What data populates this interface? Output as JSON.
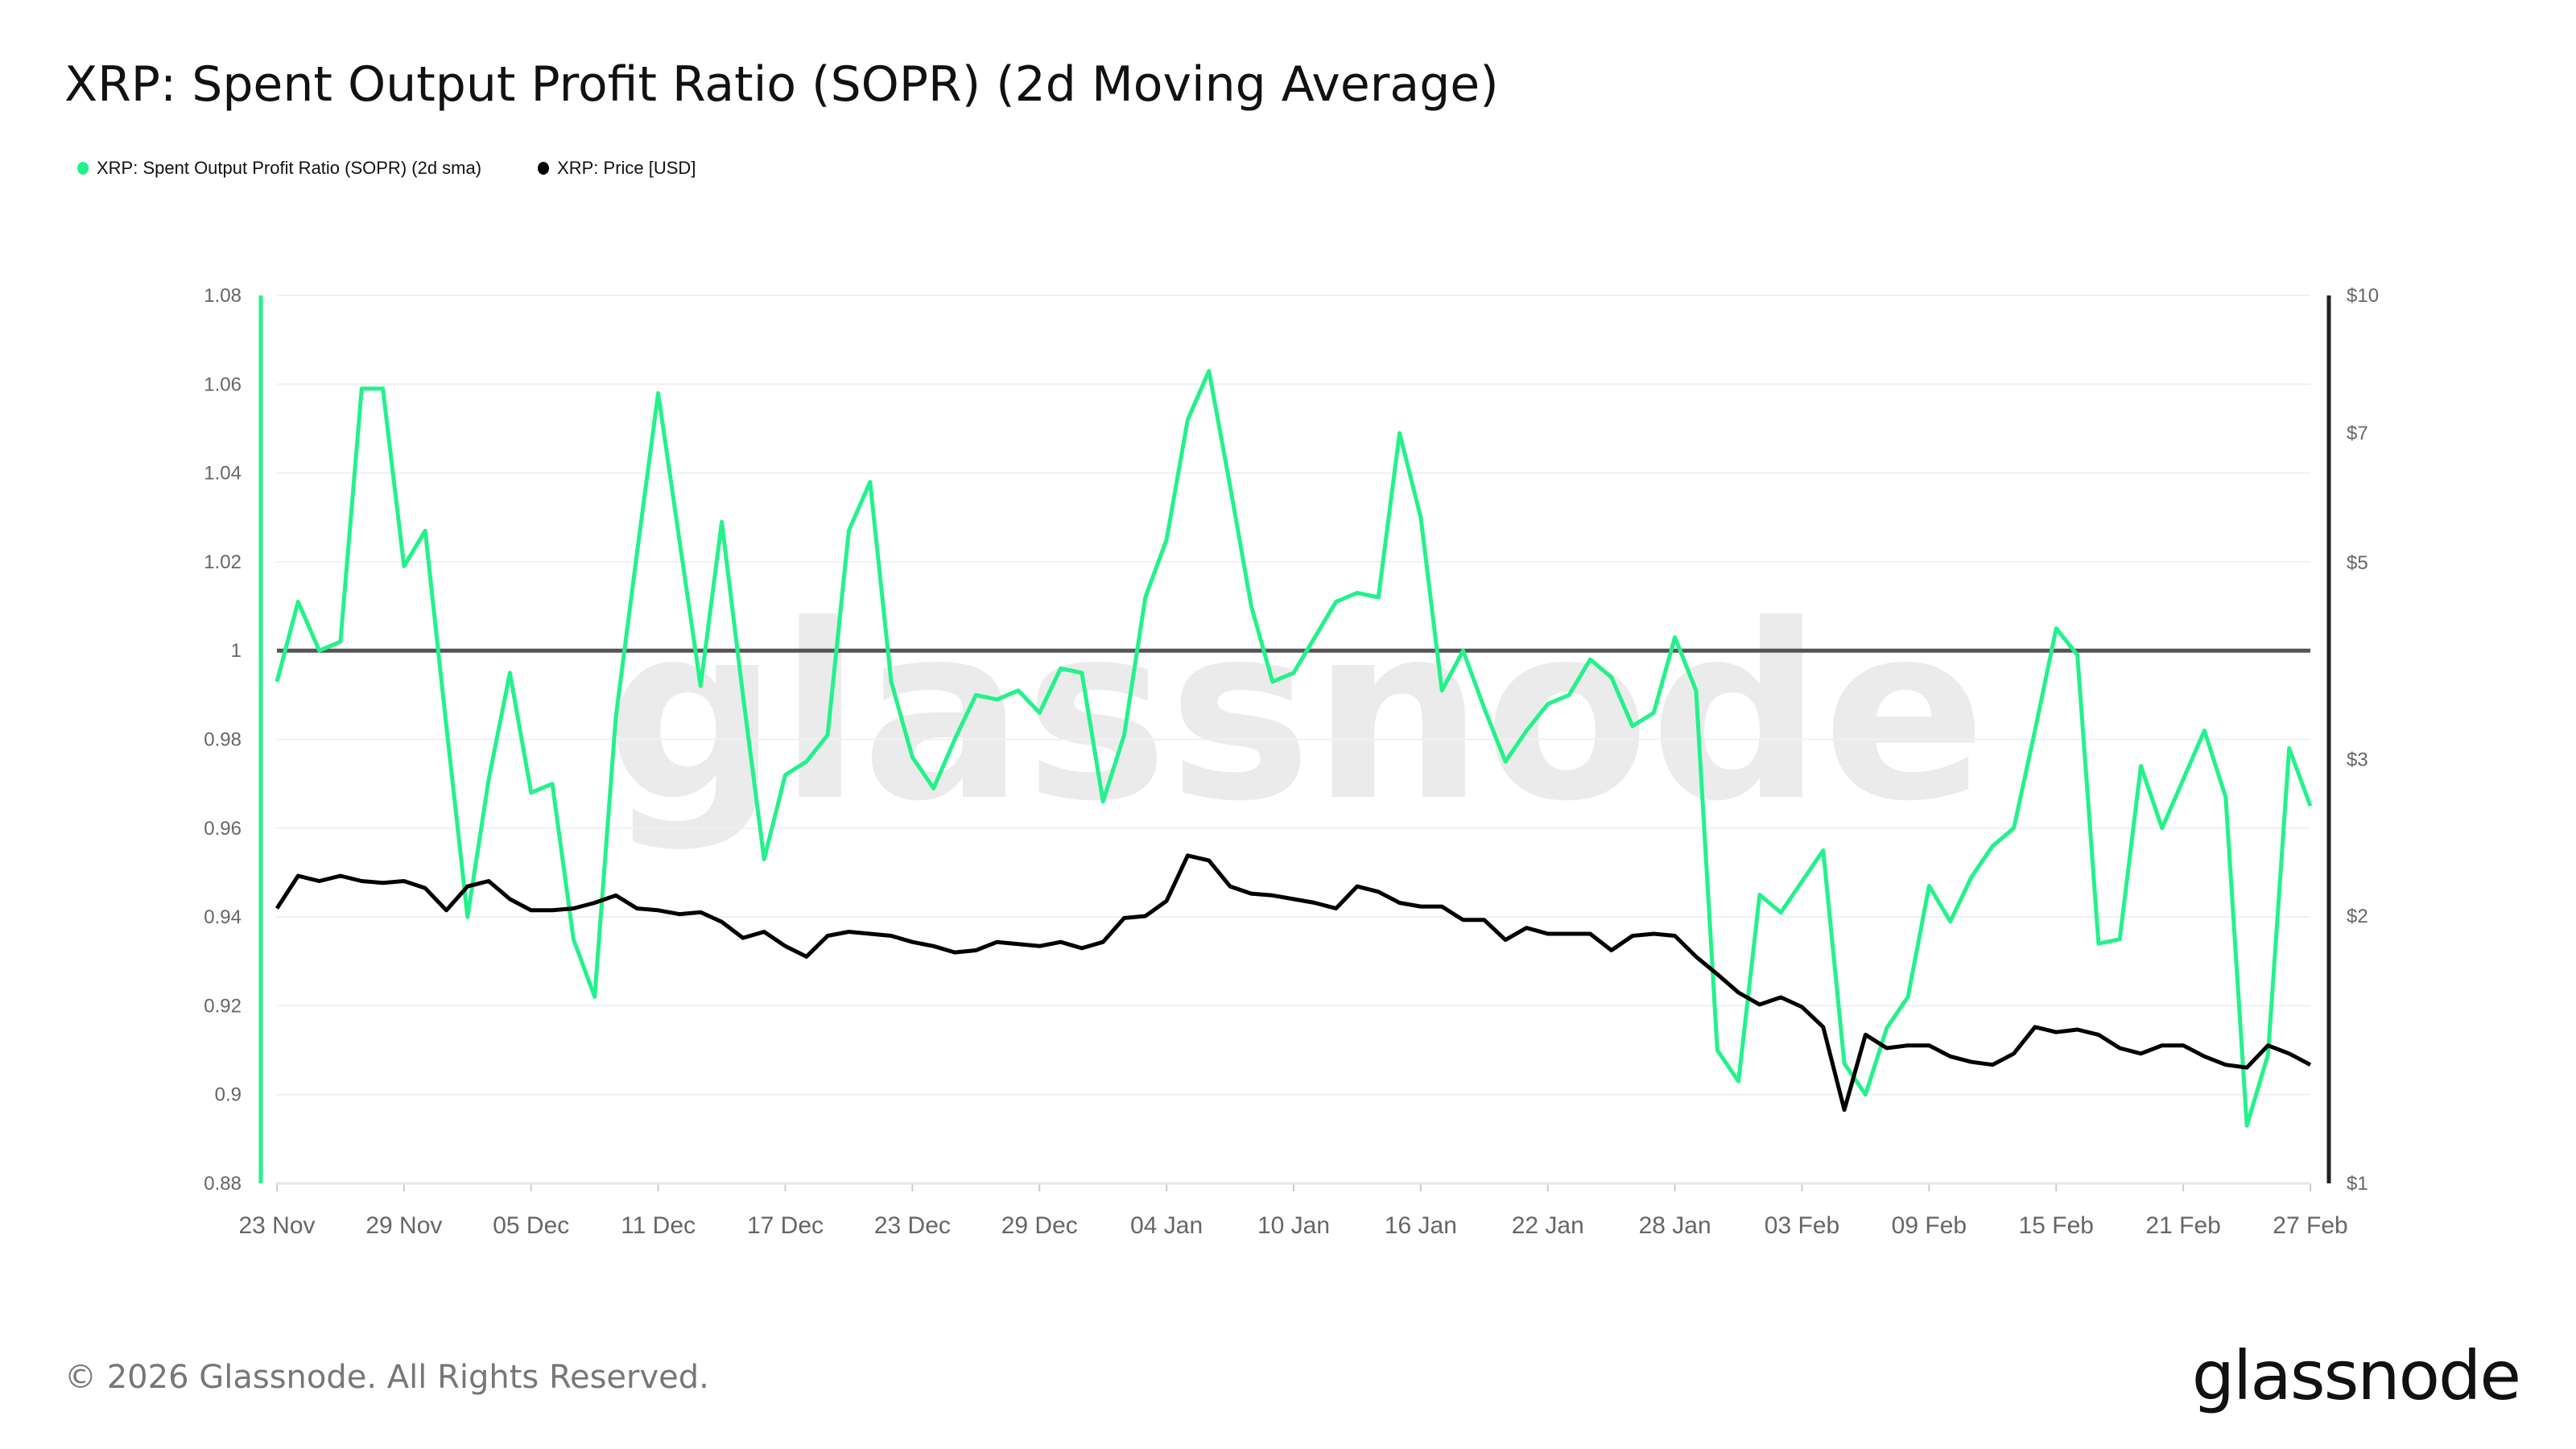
{
  "title": "XRP: Spent Output Profit Ratio (SOPR) (2d Moving Average)",
  "legend": [
    {
      "label": "XRP: Spent Output Profit Ratio (SOPR) (2d sma)",
      "color": "#22f28a"
    },
    {
      "label": "XRP: Price [USD]",
      "color": "#000000"
    }
  ],
  "watermark": "glassnode",
  "footer": {
    "copyright": "© 2026 Glassnode. All Rights Reserved.",
    "logo": "glassnode"
  },
  "chart_data": {
    "type": "line",
    "x_start": "23 Nov",
    "x_end": "27 Feb",
    "x_tick_labels": [
      "23 Nov",
      "29 Nov",
      "05 Dec",
      "11 Dec",
      "17 Dec",
      "23 Dec",
      "29 Dec",
      "04 Jan",
      "10 Jan",
      "16 Jan",
      "22 Jan",
      "28 Jan",
      "03 Feb",
      "09 Feb",
      "15 Feb",
      "21 Feb",
      "27 Feb"
    ],
    "y_left": {
      "range": [
        0.88,
        1.08
      ],
      "ticks": [
        "0.88",
        "0.9",
        "0.92",
        "0.94",
        "0.96",
        "0.98",
        "1",
        "1.02",
        "1.04",
        "1.06",
        "1.08"
      ],
      "scale": "linear"
    },
    "y_right": {
      "range": [
        1,
        10
      ],
      "ticks": [
        "$1",
        "$2",
        "$3",
        "$5",
        "$7",
        "$10"
      ],
      "tick_values": [
        1,
        2,
        3,
        5,
        7,
        10
      ],
      "scale": "log"
    },
    "reference_line": {
      "value": 1.0,
      "color": "#555555"
    },
    "grid": true,
    "legend_position": "top-left",
    "series": [
      {
        "name": "XRP: Spent Output Profit Ratio (SOPR) (2d sma)",
        "axis": "left",
        "color": "#22f28a",
        "values": [
          0.993,
          1.011,
          1.0,
          1.002,
          1.059,
          1.059,
          1.019,
          1.027,
          0.983,
          0.94,
          0.971,
          0.995,
          0.968,
          0.97,
          0.935,
          0.922,
          0.985,
          1.022,
          1.058,
          1.025,
          0.992,
          1.029,
          0.99,
          0.953,
          0.972,
          0.975,
          0.981,
          1.027,
          1.038,
          0.993,
          0.976,
          0.969,
          0.98,
          0.99,
          0.989,
          0.991,
          0.986,
          0.996,
          0.995,
          0.966,
          0.981,
          1.012,
          1.025,
          1.052,
          1.063,
          1.037,
          1.01,
          0.993,
          0.995,
          1.003,
          1.011,
          1.013,
          1.012,
          1.049,
          1.03,
          0.991,
          1.0,
          0.987,
          0.975,
          0.982,
          0.988,
          0.99,
          0.998,
          0.994,
          0.983,
          0.986,
          1.003,
          0.991,
          0.91,
          0.903,
          0.945,
          0.941,
          0.948,
          0.955,
          0.907,
          0.9,
          0.915,
          0.922,
          0.947,
          0.939,
          0.949,
          0.956,
          0.96,
          0.982,
          1.005,
          0.999,
          0.934,
          0.935,
          0.974,
          0.96,
          0.971,
          0.982,
          0.967,
          0.893,
          0.909,
          0.978,
          0.965
        ]
      },
      {
        "name": "XRP: Price [USD]",
        "axis": "right",
        "color": "#000000",
        "values": [
          2.04,
          2.22,
          2.19,
          2.22,
          2.19,
          2.18,
          2.19,
          2.15,
          2.03,
          2.16,
          2.19,
          2.09,
          2.03,
          2.03,
          2.04,
          2.07,
          2.11,
          2.04,
          2.03,
          2.01,
          2.02,
          1.97,
          1.89,
          1.92,
          1.85,
          1.8,
          1.9,
          1.92,
          1.91,
          1.9,
          1.87,
          1.85,
          1.82,
          1.83,
          1.87,
          1.86,
          1.85,
          1.87,
          1.84,
          1.87,
          1.99,
          2.0,
          2.08,
          2.34,
          2.31,
          2.16,
          2.12,
          2.11,
          2.09,
          2.07,
          2.04,
          2.16,
          2.13,
          2.07,
          2.05,
          2.05,
          1.98,
          1.98,
          1.88,
          1.94,
          1.91,
          1.91,
          1.91,
          1.83,
          1.9,
          1.91,
          1.9,
          1.8,
          1.72,
          1.64,
          1.59,
          1.62,
          1.58,
          1.5,
          1.21,
          1.47,
          1.42,
          1.43,
          1.43,
          1.39,
          1.37,
          1.36,
          1.4,
          1.5,
          1.48,
          1.49,
          1.47,
          1.42,
          1.4,
          1.43,
          1.43,
          1.39,
          1.36,
          1.35,
          1.43,
          1.4,
          1.36
        ]
      }
    ]
  }
}
